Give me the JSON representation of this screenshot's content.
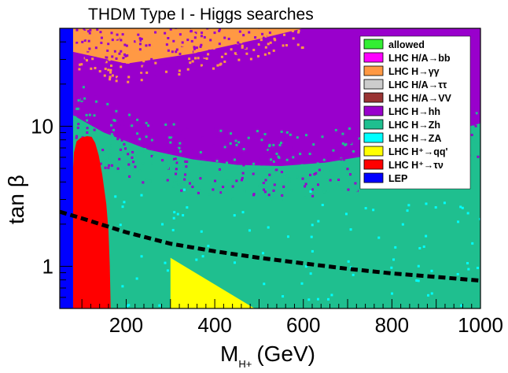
{
  "chart_data": {
    "type": "scatter",
    "title": "THDM Type I - Higgs searches",
    "xlabel": "M",
    "xlabel_sub": "H+",
    "xlabel_unit": "(GeV)",
    "ylabel": "tan β",
    "xlim": [
      50,
      1000
    ],
    "ylim": [
      0.5,
      50
    ],
    "yscale": "log",
    "x_ticks": [
      200,
      400,
      600,
      800,
      1000
    ],
    "x_tick_labels": [
      "200",
      "400",
      "600",
      "800",
      "1000"
    ],
    "y_ticks": [
      1,
      10
    ],
    "y_tick_labels": [
      "1",
      "10"
    ],
    "legend_position": "top-right",
    "legend": [
      {
        "id": "allowed",
        "label": "allowed",
        "color": "#33ee33"
      },
      {
        "id": "hA_bb",
        "label": "LHC H/A→bb",
        "color": "#ff00ff"
      },
      {
        "id": "h_gg",
        "label": "LHC H→γγ",
        "color": "#ff9944"
      },
      {
        "id": "hA_tautau",
        "label": "LHC H/A→ττ",
        "color": "#cccccc"
      },
      {
        "id": "hA_vv",
        "label": "LHC H/A→VV",
        "color": "#993333"
      },
      {
        "id": "h_hh",
        "label": "LHC H→hh",
        "color": "#9900cc"
      },
      {
        "id": "h_zh",
        "label": "LHC H→Zh",
        "color": "#1fbf8f"
      },
      {
        "id": "h_za",
        "label": "LHC H→ZA",
        "color": "#00ffff"
      },
      {
        "id": "hp_qq",
        "label": "LHC H⁺→qq'",
        "color": "#ffff00"
      },
      {
        "id": "hp_taunu",
        "label": "LHC H⁺→τν",
        "color": "#ff0000"
      },
      {
        "id": "lep",
        "label": "LEP",
        "color": "#0000ff"
      }
    ],
    "regions": {
      "lep_max_mass": 80,
      "taunu_boundary": [
        [
          80,
          5.0
        ],
        [
          82,
          6.5
        ],
        [
          88,
          7.8
        ],
        [
          98,
          8.3
        ],
        [
          112,
          8.5
        ],
        [
          122,
          8.4
        ],
        [
          130,
          7.6
        ],
        [
          138,
          6.2
        ],
        [
          146,
          4.5
        ],
        [
          155,
          2.8
        ],
        [
          160,
          1.8
        ],
        [
          163,
          1.0
        ],
        [
          165,
          0.5
        ]
      ],
      "qq_triangle": [
        [
          300,
          1.15
        ],
        [
          300,
          0.5
        ],
        [
          490,
          0.5
        ]
      ],
      "hh_lower_edge": [
        [
          80,
          12
        ],
        [
          150,
          9
        ],
        [
          250,
          6.8
        ],
        [
          350,
          5.8
        ],
        [
          450,
          5.3
        ],
        [
          550,
          5.2
        ],
        [
          650,
          5.5
        ],
        [
          750,
          6.2
        ],
        [
          850,
          7.5
        ],
        [
          950,
          9.5
        ],
        [
          1000,
          10.5
        ]
      ],
      "gg_lower_edge": [
        [
          80,
          34
        ],
        [
          200,
          28
        ],
        [
          350,
          33
        ],
        [
          500,
          42
        ],
        [
          600,
          50
        ]
      ]
    },
    "series": [
      {
        "name": "dashed reference line",
        "color": "#000000",
        "x": [
          50,
          100,
          200,
          300,
          400,
          500,
          600,
          700,
          800,
          900,
          1000
        ],
        "y": [
          2.45,
          2.2,
          1.75,
          1.45,
          1.28,
          1.15,
          1.05,
          0.96,
          0.89,
          0.84,
          0.79
        ]
      }
    ]
  }
}
